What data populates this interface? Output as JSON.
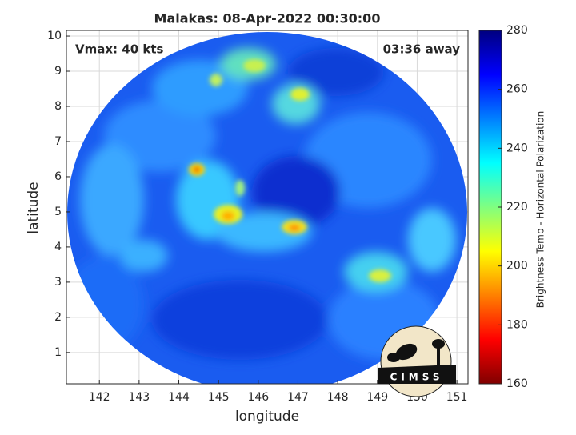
{
  "chart_data": {
    "type": "image",
    "title": "Malakas: 08-Apr-2022 00:30:00",
    "xlabel": "longitude",
    "ylabel": "latitude",
    "xlim": [
      141.17,
      151.28
    ],
    "ylim": [
      0.11,
      10.16
    ],
    "xticks": [
      142,
      143,
      144,
      145,
      146,
      147,
      148,
      149,
      150,
      151
    ],
    "yticks": [
      1,
      2,
      3,
      4,
      5,
      6,
      7,
      8,
      9,
      10
    ],
    "grid": true,
    "annotations": [
      "Vmax: 40 kts",
      "03:36 away"
    ],
    "logo_text": "CIMSS",
    "colorbar": {
      "label": "Brightness Temp - Horizontal Polarization",
      "lim": [
        160,
        280
      ],
      "ticks": [
        160,
        180,
        200,
        220,
        240,
        260,
        280
      ],
      "colormap": [
        "#800000",
        "#ff0000",
        "#ff8000",
        "#ffff00",
        "#80ff80",
        "#00ffff",
        "#0080ff",
        "#0000ff",
        "#000080"
      ]
    }
  }
}
